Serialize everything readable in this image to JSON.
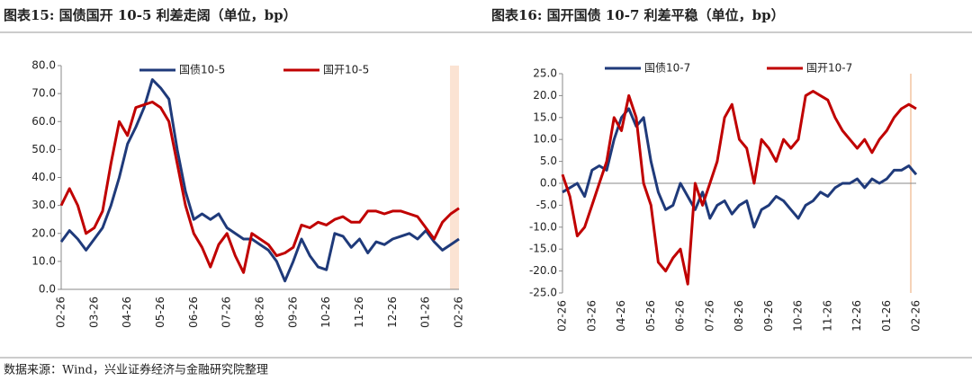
{
  "chart_data": [
    {
      "type": "line",
      "title": "图表15: 国债国开 10-5 利差走阔（单位，bp）",
      "categories": [
        "02-26",
        null,
        null,
        null,
        "03-26",
        null,
        null,
        null,
        "04-26",
        null,
        null,
        null,
        "05-26",
        null,
        null,
        null,
        "06-26",
        null,
        null,
        null,
        "07-26",
        null,
        null,
        null,
        "08-26",
        null,
        null,
        null,
        "09-26",
        null,
        null,
        null,
        "10-26",
        null,
        null,
        null,
        "11-26",
        null,
        null,
        null,
        "12-26",
        null,
        null,
        null,
        "01-26",
        null,
        null,
        null,
        "02-26"
      ],
      "ylim": [
        0,
        80
      ],
      "yticks": [
        {
          "value": 0,
          "label": "0.0"
        },
        {
          "value": 10,
          "label": "10.0"
        },
        {
          "value": 20,
          "label": "20.0"
        },
        {
          "value": 30,
          "label": "30.0"
        },
        {
          "value": 40,
          "label": "40.0"
        },
        {
          "value": 50,
          "label": "50.0"
        },
        {
          "value": 60,
          "label": "60.0"
        },
        {
          "value": 70,
          "label": "70.0"
        },
        {
          "value": 80,
          "label": "80.0"
        }
      ],
      "series": [
        {
          "name": "国债10-5",
          "color": "#1f3a7a",
          "values": [
            17,
            21,
            18,
            14,
            18,
            22,
            30,
            40,
            52,
            58,
            65,
            75,
            72,
            68,
            50,
            35,
            25,
            27,
            25,
            27,
            22,
            20,
            18,
            18,
            16,
            14,
            10,
            3,
            10,
            18,
            12,
            8,
            7,
            20,
            19,
            15,
            18,
            13,
            17,
            16,
            18,
            19,
            20,
            18,
            21,
            17,
            14,
            16,
            18
          ]
        },
        {
          "name": "国开10-5",
          "color": "#c00000",
          "values": [
            30,
            36,
            30,
            20,
            22,
            28,
            45,
            60,
            55,
            65,
            66,
            67,
            65,
            60,
            45,
            30,
            20,
            15,
            8,
            16,
            20,
            12,
            6,
            20,
            18,
            16,
            12,
            13,
            15,
            23,
            22,
            24,
            23,
            25,
            26,
            24,
            24,
            28,
            28,
            27,
            28,
            28,
            27,
            26,
            22,
            18,
            24,
            27,
            29
          ]
        }
      ]
    },
    {
      "type": "line",
      "title": "图表16: 国开国债 10-7 利差平稳（单位，bp）",
      "categories": [
        "02-26",
        null,
        null,
        null,
        "03-26",
        null,
        null,
        null,
        "04-26",
        null,
        null,
        null,
        "05-26",
        null,
        null,
        null,
        "06-26",
        null,
        null,
        null,
        "07-26",
        null,
        null,
        null,
        "08-26",
        null,
        null,
        null,
        "09-26",
        null,
        null,
        null,
        "10-26",
        null,
        null,
        null,
        "11-26",
        null,
        null,
        null,
        "12-26",
        null,
        null,
        null,
        "01-26",
        null,
        null,
        null,
        "02-26"
      ],
      "ylim": [
        -25,
        25
      ],
      "yticks": [
        {
          "value": -25,
          "label": "-25.0"
        },
        {
          "value": -20,
          "label": "-20.0"
        },
        {
          "value": -15,
          "label": "-15.0"
        },
        {
          "value": -10,
          "label": "-10.0"
        },
        {
          "value": -5,
          "label": "-5.0"
        },
        {
          "value": 0,
          "label": "0.0"
        },
        {
          "value": 5,
          "label": "5.0"
        },
        {
          "value": 10,
          "label": "10.0"
        },
        {
          "value": 15,
          "label": "15.0"
        },
        {
          "value": 20,
          "label": "20.0"
        },
        {
          "value": 25,
          "label": "25.0"
        }
      ],
      "series": [
        {
          "name": "国债10-7",
          "color": "#1f3a7a",
          "values": [
            -2,
            -1,
            0,
            -3,
            3,
            4,
            3,
            10,
            15,
            17,
            13,
            15,
            5,
            -2,
            -6,
            -5,
            0,
            -3,
            -6,
            -2,
            -8,
            -5,
            -4,
            -7,
            -5,
            -4,
            -10,
            -6,
            -5,
            -3,
            -4,
            -6,
            -8,
            -5,
            -4,
            -2,
            -3,
            -1,
            0,
            0,
            1,
            -1,
            1,
            0,
            1,
            3,
            3,
            4,
            2
          ]
        },
        {
          "name": "国开10-7",
          "color": "#c00000",
          "values": [
            2,
            -3,
            -12,
            -10,
            -5,
            0,
            5,
            15,
            12,
            20,
            15,
            0,
            -5,
            -18,
            -20,
            -17,
            -15,
            -23,
            0,
            -5,
            0,
            5,
            15,
            18,
            10,
            8,
            0,
            10,
            8,
            5,
            10,
            8,
            10,
            20,
            21,
            20,
            19,
            15,
            12,
            10,
            8,
            10,
            7,
            10,
            12,
            15,
            17,
            18,
            17
          ]
        }
      ]
    }
  ],
  "source": "数据来源：Wind，兴业证券经济与金融研究院整理"
}
